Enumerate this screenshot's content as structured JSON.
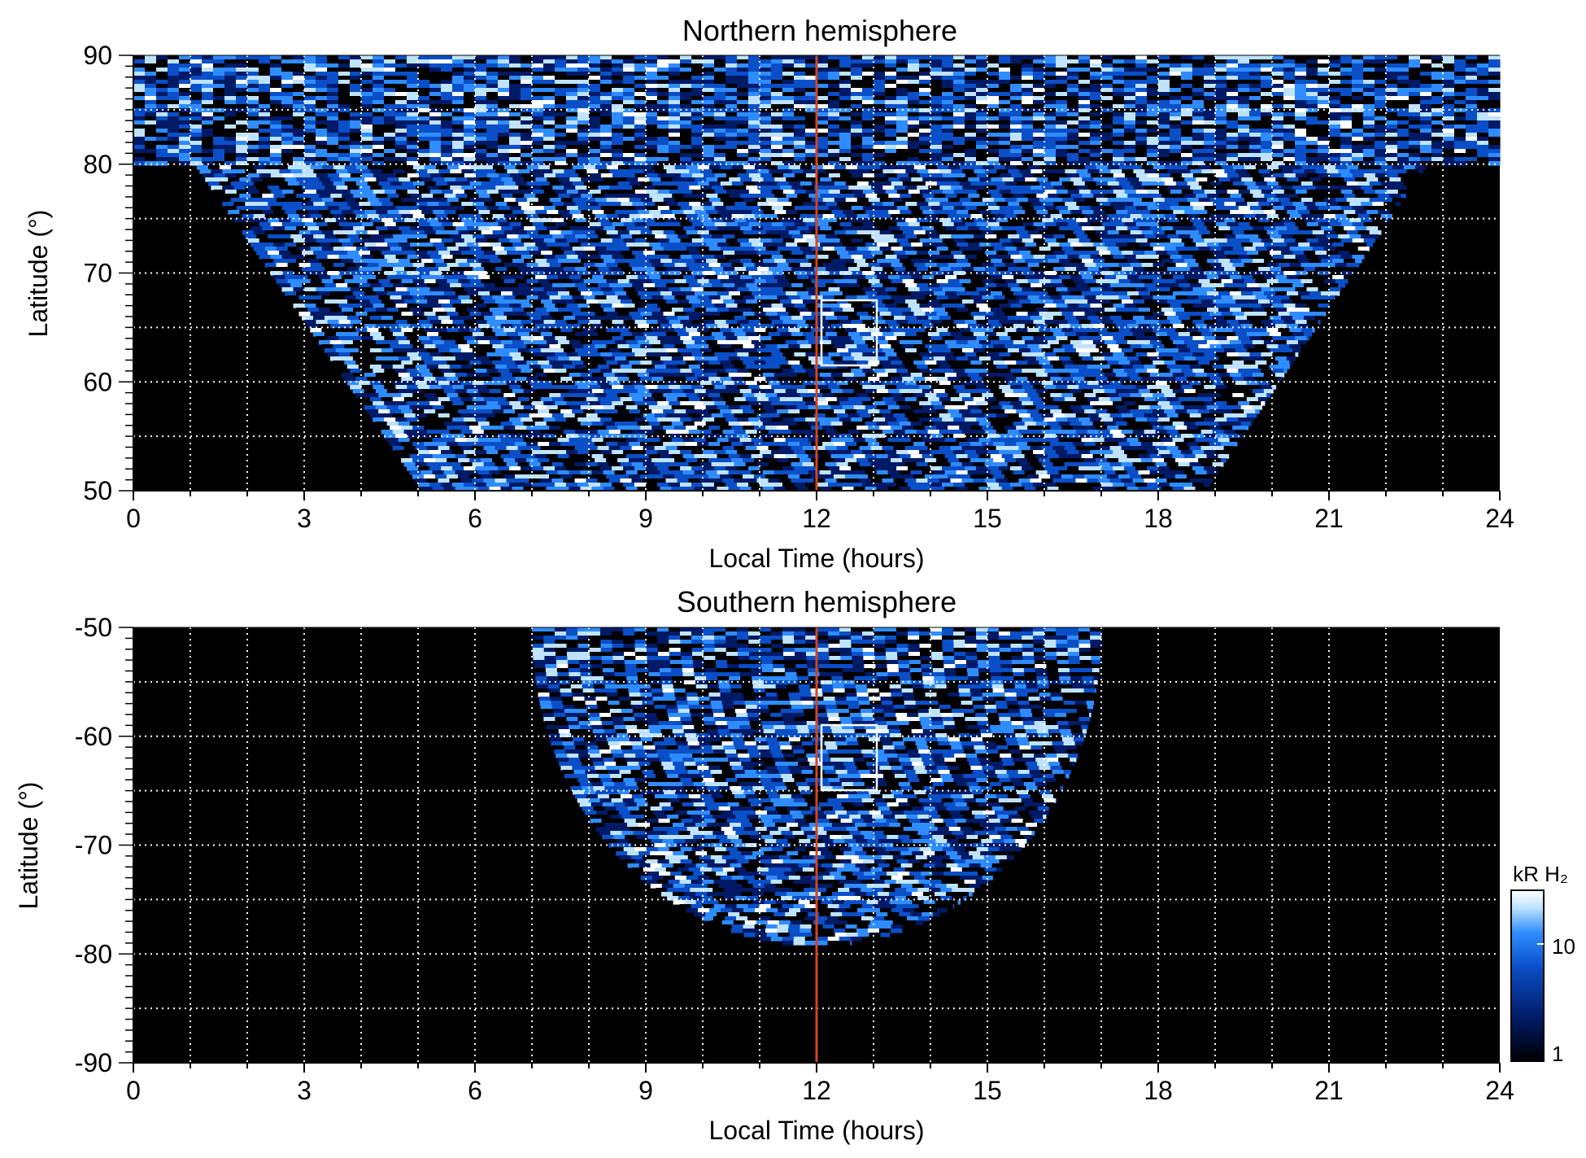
{
  "chart_data": [
    {
      "type": "heatmap",
      "title": "Northern hemisphere",
      "xlabel": "Local Time (hours)",
      "ylabel": "Latitude (°)",
      "xlim": [
        0,
        24
      ],
      "ylim": [
        50,
        90
      ],
      "x_ticks": [
        "0",
        "3",
        "6",
        "9",
        "12",
        "15",
        "18",
        "21",
        "24"
      ],
      "y_ticks": [
        "50",
        "60",
        "70",
        "80",
        "90"
      ],
      "grid": true,
      "grid_style": "dotted",
      "reference_line": {
        "local_time": 12,
        "color": "#d2451e"
      },
      "highlight_box": {
        "local_time": [
          12,
          13
        ],
        "latitude": [
          61.5,
          67.5
        ]
      },
      "coverage": "emission from ~5 to ~19 h LT at 50°, spreading over all local times above 80°"
    },
    {
      "type": "heatmap",
      "title": "Southern hemisphere",
      "xlabel": "Local Time (hours)",
      "ylabel": "Latitude (°)",
      "xlim": [
        0,
        24
      ],
      "ylim": [
        -90,
        -50
      ],
      "x_ticks": [
        "0",
        "3",
        "6",
        "9",
        "12",
        "15",
        "18",
        "21",
        "24"
      ],
      "y_ticks": [
        "-50",
        "-60",
        "-70",
        "-80",
        "-90"
      ],
      "grid": true,
      "grid_style": "dotted",
      "reference_line": {
        "local_time": 12,
        "color": "#d2451e"
      },
      "highlight_box": {
        "local_time": [
          12,
          13
        ],
        "latitude": [
          -65,
          -59
        ]
      },
      "coverage": "emission from ~7 to ~17 h LT at -50°, narrowing to ~12 h near -79°"
    }
  ],
  "colorbar": {
    "label": "kR H₂",
    "ticks": [
      "10",
      "1"
    ],
    "scale": "log",
    "range": [
      1,
      30
    ],
    "colors": [
      "#000000",
      "#001a66",
      "#0a4fc7",
      "#2f8cff",
      "#bfe3ff",
      "#ffffff"
    ]
  },
  "colors": {
    "background": "#000000",
    "grid": "#ffffff",
    "noon_line": "#d2451e",
    "box": "#ffffff"
  }
}
